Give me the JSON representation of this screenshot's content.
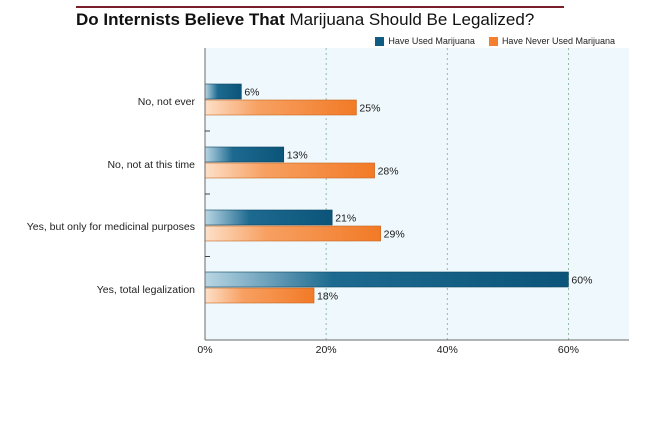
{
  "chart_data": {
    "type": "bar",
    "orientation": "horizontal",
    "title_bold": "Do Internists Believe That",
    "title_rest": "Marijuana Should Be Legalized?",
    "categories": [
      "No, not ever",
      "No, not at this time",
      "Yes, but only for medicinal purposes",
      "Yes, total legalization"
    ],
    "series": [
      {
        "name": "Have Used Marijuana",
        "values": [
          6,
          13,
          21,
          60
        ],
        "labels": [
          "6%",
          "13%",
          "21%",
          "60%"
        ],
        "color": "#0f5b82"
      },
      {
        "name": "Have Never Used Marijuana",
        "values": [
          25,
          28,
          29,
          18
        ],
        "labels": [
          "25%",
          "28%",
          "29%",
          "18%"
        ],
        "color": "#f47f2f"
      }
    ],
    "xlim": [
      0,
      70
    ],
    "xticks": [
      0,
      20,
      40,
      60
    ],
    "xtick_labels": [
      "0%",
      "20%",
      "40%",
      "60%"
    ],
    "grid": true,
    "legend_position": "top-right",
    "plot_background": "#eef8fd"
  }
}
